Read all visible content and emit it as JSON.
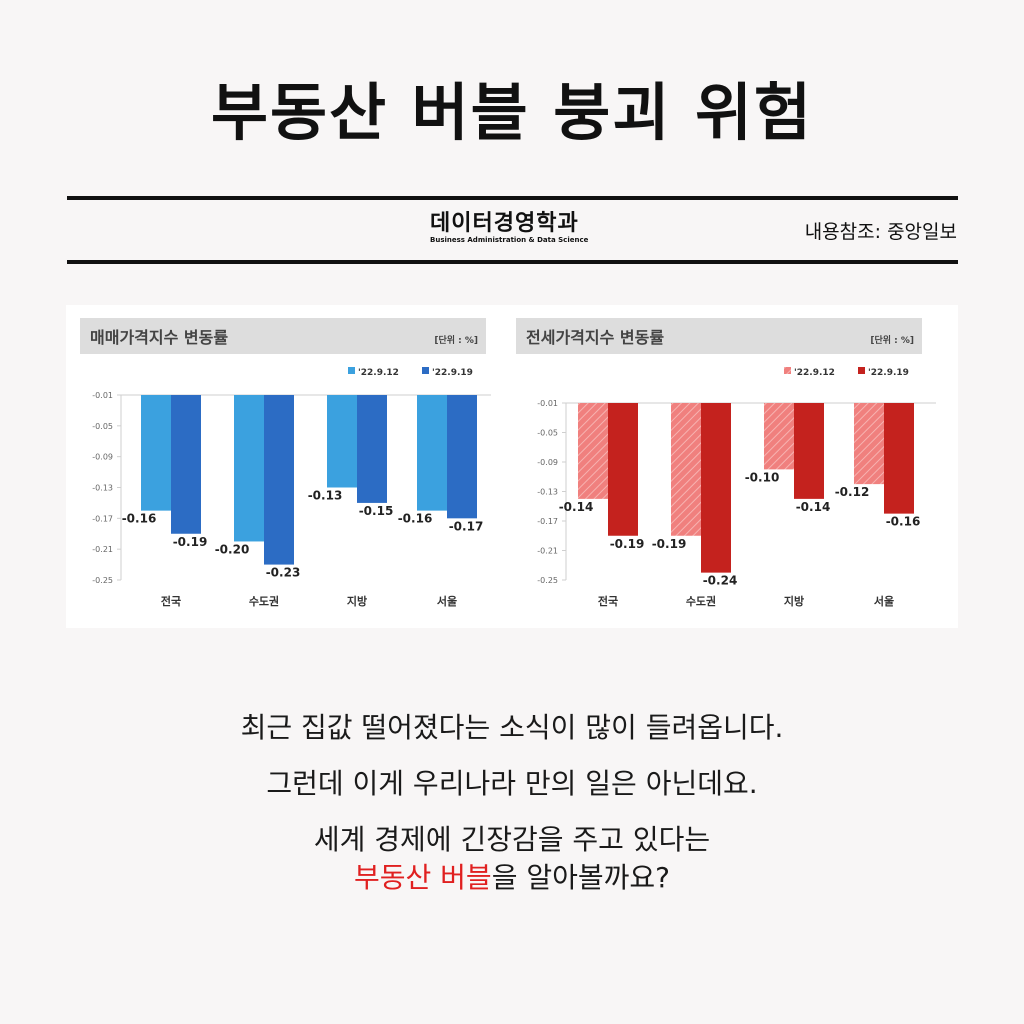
{
  "title": "부동산 버블 붕괴 위험",
  "brand": {
    "name": "데이터경영학과",
    "subtitle": "Business Administration & Data Science"
  },
  "source": "내용참조: 중앙일보",
  "chart_data": [
    {
      "type": "bar",
      "title": "매매가격지수 변동률",
      "unit": "[단위 : %]",
      "categories": [
        "전국",
        "수도권",
        "지방",
        "서울"
      ],
      "series": [
        {
          "name": "'22.9.12",
          "color": "#3ba1df",
          "values": [
            -0.16,
            -0.2,
            -0.13,
            -0.16
          ]
        },
        {
          "name": "'22.9.19",
          "color": "#2c6cc4",
          "values": [
            -0.19,
            -0.23,
            -0.15,
            -0.17
          ]
        }
      ],
      "value_labels": [
        [
          "-0.16",
          "-0.20",
          "-0.13",
          "-0.16"
        ],
        [
          "-0.19",
          "-0.23",
          "-0.15",
          "-0.17"
        ]
      ],
      "yticks": [
        -0.01,
        -0.05,
        -0.09,
        -0.13,
        -0.17,
        -0.21,
        -0.25
      ],
      "ytick_labels": [
        "-0.01",
        "-0.05",
        "-0.09",
        "-0.13",
        "-0.17",
        "-0.21",
        "-0.25"
      ],
      "ylim": [
        -0.25,
        -0.01
      ],
      "legend": "top-right",
      "grid": false
    },
    {
      "type": "bar",
      "title": "전세가격지수 변동률",
      "unit": "[단위 : %]",
      "categories": [
        "전국",
        "수도권",
        "지방",
        "서울"
      ],
      "series": [
        {
          "name": "'22.9.12",
          "color": "#f0807e",
          "hatched": true,
          "values": [
            -0.14,
            -0.19,
            -0.1,
            -0.12
          ]
        },
        {
          "name": "'22.9.19",
          "color": "#c4221e",
          "values": [
            -0.19,
            -0.24,
            -0.14,
            -0.16
          ]
        }
      ],
      "value_labels": [
        [
          "-0.14",
          "-0.19",
          "-0.10",
          "-0.12"
        ],
        [
          "-0.19",
          "-0.24",
          "-0.14",
          "-0.16"
        ]
      ],
      "yticks": [
        -0.01,
        -0.05,
        -0.09,
        -0.13,
        -0.17,
        -0.21,
        -0.25
      ],
      "ytick_labels": [
        "-0.01",
        "-0.05",
        "-0.09",
        "-0.13",
        "-0.17",
        "-0.21",
        "-0.25"
      ],
      "ylim": [
        -0.25,
        -0.01
      ],
      "legend": "top-right",
      "grid": false
    }
  ],
  "description": {
    "line1": "최근 집값 떨어졌다는 소식이 많이 들려옵니다.",
    "line2": "그런데 이게 우리나라 만의 일은 아닌데요.",
    "line3": "세계 경제에 긴장감을 주고 있다는",
    "line4_highlight": "부동산 버블",
    "line4_rest": "을 알아볼까요?"
  }
}
